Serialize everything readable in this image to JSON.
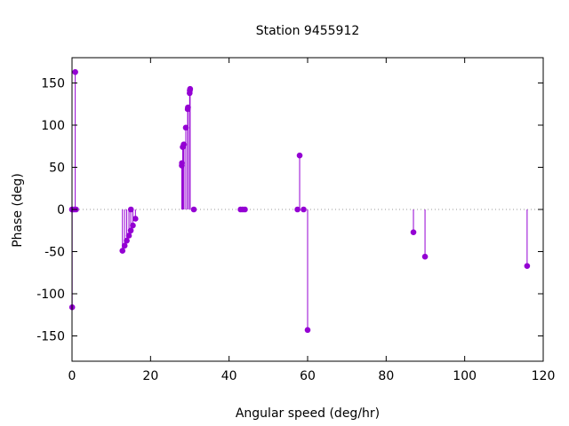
{
  "chart_data": {
    "type": "scatter",
    "style": "impulses-with-points",
    "title": "Station 9455912",
    "xlabel": "Angular speed (deg/hr)",
    "ylabel": "Phase (deg)",
    "xlim": [
      0,
      120
    ],
    "ylim": [
      -180,
      180
    ],
    "xticks": [
      0,
      20,
      40,
      60,
      80,
      100,
      120
    ],
    "yticks": [
      -150,
      -100,
      -50,
      0,
      50,
      100,
      150
    ],
    "xtick_labels": [
      "0",
      "20",
      "40",
      "60",
      "80",
      "100",
      "120"
    ],
    "ytick_labels": [
      "-150",
      "-100",
      "-50",
      "0",
      "50",
      "100",
      "150"
    ],
    "zero_line": "dotted",
    "grid": false,
    "legend": "none",
    "color": "#9400d3",
    "series": [
      {
        "points": [
          {
            "x": 0.0,
            "y": 0
          },
          {
            "x": 0.04,
            "y": -116
          },
          {
            "x": 0.08,
            "y": 0
          },
          {
            "x": 0.54,
            "y": 0
          },
          {
            "x": 0.82,
            "y": 163
          },
          {
            "x": 1.02,
            "y": 0
          },
          {
            "x": 12.85,
            "y": -49
          },
          {
            "x": 13.4,
            "y": -43
          },
          {
            "x": 13.94,
            "y": -37
          },
          {
            "x": 14.5,
            "y": -31
          },
          {
            "x": 14.96,
            "y": -25
          },
          {
            "x": 15.0,
            "y": 0
          },
          {
            "x": 15.5,
            "y": -19
          },
          {
            "x": 16.14,
            "y": -11
          },
          {
            "x": 27.97,
            "y": 52
          },
          {
            "x": 28.0,
            "y": 55
          },
          {
            "x": 28.2,
            "y": 74
          },
          {
            "x": 28.44,
            "y": 77
          },
          {
            "x": 28.51,
            "y": 77
          },
          {
            "x": 28.98,
            "y": 97
          },
          {
            "x": 29.46,
            "y": 119
          },
          {
            "x": 29.53,
            "y": 121
          },
          {
            "x": 29.96,
            "y": 138
          },
          {
            "x": 30.0,
            "y": 141
          },
          {
            "x": 30.08,
            "y": 143
          },
          {
            "x": 31.02,
            "y": 0
          },
          {
            "x": 42.93,
            "y": 0
          },
          {
            "x": 43.48,
            "y": 0
          },
          {
            "x": 44.03,
            "y": 0
          },
          {
            "x": 57.42,
            "y": 0
          },
          {
            "x": 57.97,
            "y": 64
          },
          {
            "x": 58.98,
            "y": 0
          },
          {
            "x": 60.0,
            "y": -143
          },
          {
            "x": 86.95,
            "y": -27
          },
          {
            "x": 89.9,
            "y": -56
          },
          {
            "x": 115.9,
            "y": -67
          }
        ]
      }
    ]
  }
}
